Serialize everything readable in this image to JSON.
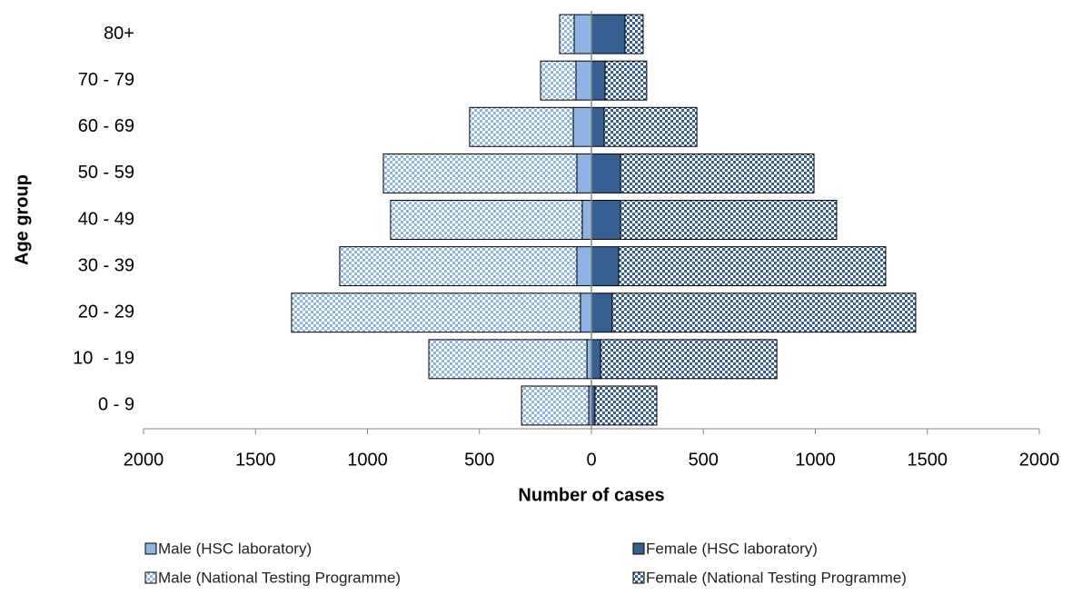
{
  "chart_data": {
    "type": "pyramid",
    "orientation": "horizontal",
    "x_label": "Number of cases",
    "y_label": "Age group",
    "categories": [
      "0 - 9",
      "10  - 19",
      "20 - 29",
      "30 - 39",
      "40 - 49",
      "50 - 59",
      "60 - 69",
      "70 - 79",
      "80+"
    ],
    "series": [
      {
        "name": "Male (HSC laboratory)",
        "color": "#8eb4e3",
        "pattern": "solid",
        "values": [
          -12,
          -20,
          -49,
          -65,
          -41,
          -65,
          -81,
          -69,
          -77
        ]
      },
      {
        "name": "Female (HSC laboratory)",
        "color": "#376092",
        "pattern": "solid",
        "values": [
          16,
          41,
          93,
          122,
          130,
          130,
          57,
          61,
          150
        ]
      },
      {
        "name": "Male (National Testing Programme)",
        "color": "#8eb4e3",
        "pattern": "checker",
        "values": [
          -300,
          -706,
          -1290,
          -1059,
          -856,
          -864,
          -463,
          -158,
          -65
        ]
      },
      {
        "name": "Female (National Testing Programme)",
        "color": "#376092",
        "pattern": "checker",
        "values": [
          276,
          787,
          1355,
          1192,
          965,
          864,
          414,
          186,
          81
        ]
      }
    ],
    "xlim": [
      -2000,
      2000
    ],
    "xticks": [
      {
        "value": -2000,
        "label": "2000"
      },
      {
        "value": -1500,
        "label": "1500"
      },
      {
        "value": -1000,
        "label": "1000"
      },
      {
        "value": -500,
        "label": "500"
      },
      0,
      500,
      1000,
      1500,
      2000
    ],
    "legend": "bottom"
  }
}
